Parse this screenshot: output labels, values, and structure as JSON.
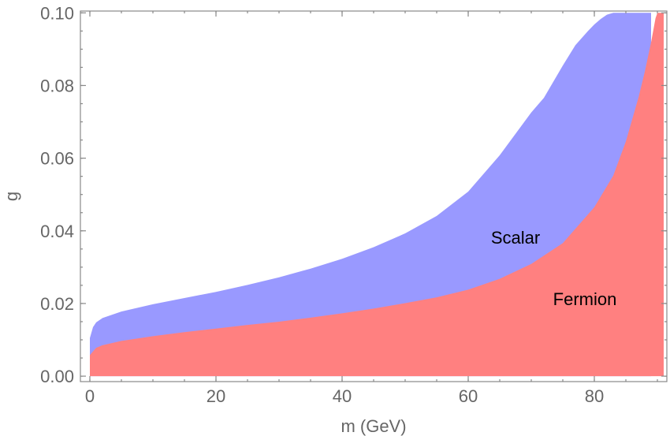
{
  "chart_data": {
    "type": "area",
    "title": "",
    "xlabel": "m (GeV)",
    "ylabel": "g",
    "xlim": [
      -1.5,
      91.5
    ],
    "ylim": [
      -0.0015,
      0.1005
    ],
    "x_ticks": [
      0,
      20,
      40,
      60,
      80
    ],
    "x_tick_labels": [
      "0",
      "20",
      "40",
      "60",
      "80"
    ],
    "y_ticks": [
      0.0,
      0.02,
      0.04,
      0.06,
      0.08,
      0.1
    ],
    "y_tick_labels": [
      "0.00",
      "0.02",
      "0.04",
      "0.06",
      "0.08",
      "0.10"
    ],
    "grid": false,
    "colors": {
      "Scalar": "#9999ff",
      "Fermion": "#ff8080"
    },
    "annotations": [
      {
        "text": "Scalar",
        "x": 67.5,
        "y": 0.0365
      },
      {
        "text": "Fermion",
        "x": 78.5,
        "y": 0.0195
      }
    ],
    "regions": [
      {
        "name": "Scalar",
        "x": [
          0,
          0.5,
          1,
          2,
          5,
          10,
          15,
          20,
          25,
          30,
          35,
          40,
          45,
          50,
          55,
          60,
          65,
          70,
          72,
          75,
          77,
          79,
          80,
          81,
          82,
          83,
          89
        ],
        "y": [
          0.0105,
          0.0135,
          0.0148,
          0.016,
          0.0178,
          0.0198,
          0.0215,
          0.0232,
          0.0251,
          0.0272,
          0.0296,
          0.0323,
          0.0355,
          0.0393,
          0.0441,
          0.0508,
          0.0608,
          0.0726,
          0.0766,
          0.0855,
          0.0911,
          0.095,
          0.0968,
          0.0983,
          0.0995,
          0.1,
          0.1
        ]
      },
      {
        "name": "Fermion",
        "x": [
          0,
          1,
          2,
          5,
          10,
          15,
          20,
          25,
          30,
          35,
          40,
          45,
          50,
          55,
          60,
          65,
          70,
          75,
          80,
          83,
          85,
          87,
          88,
          89,
          89.7,
          90,
          91
        ],
        "y": [
          0.0058,
          0.0078,
          0.0085,
          0.0097,
          0.011,
          0.0121,
          0.0131,
          0.0141,
          0.015,
          0.0161,
          0.0173,
          0.0186,
          0.0201,
          0.0217,
          0.0238,
          0.0268,
          0.0309,
          0.0366,
          0.0465,
          0.0552,
          0.0646,
          0.0767,
          0.0838,
          0.0919,
          0.0985,
          0.1,
          0.1
        ]
      }
    ]
  }
}
